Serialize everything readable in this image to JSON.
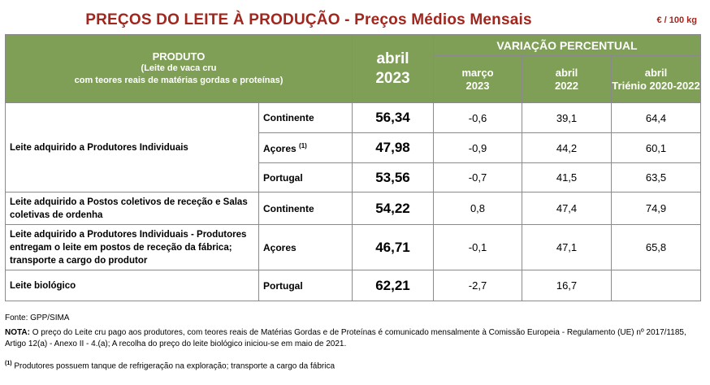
{
  "title": "PREÇOS DO LEITE À PRODUÇÃO - Preços Médios Mensais",
  "unit": "€ / 100 kg",
  "header": {
    "produto": "PRODUTO",
    "produto_sub1": "(Leite de vaca cru",
    "produto_sub2": "com teores reais de matérias gordas e proteínas)",
    "current_month": "abril",
    "current_year": "2023",
    "variation": "VARIAÇÃO PERCENTUAL",
    "col1_a": "março",
    "col1_b": "2023",
    "col2_a": "abril",
    "col2_b": "2022",
    "col3_a": "abril",
    "col3_b": "Triénio 2020-2022"
  },
  "rows": [
    {
      "product": "Leite adquirido a Produtores Individuais",
      "region": "Continente",
      "price": "56,34",
      "v1": "-0,6",
      "v2": "39,1",
      "v3": "64,4"
    },
    {
      "region": "Açores",
      "note_mark": "(1)",
      "price": "47,98",
      "v1": "-0,9",
      "v2": "44,2",
      "v3": "60,1"
    },
    {
      "region": "Portugal",
      "price": "53,56",
      "v1": "-0,7",
      "v2": "41,5",
      "v3": "63,5"
    },
    {
      "product": "Leite adquirido a Postos coletivos de receção e Salas coletivas de ordenha",
      "region": "Continente",
      "price": "54,22",
      "v1": "0,8",
      "v2": "47,4",
      "v3": "74,9"
    },
    {
      "product": "Leite adquirido a Produtores Individuais - Produtores entregam o leite em postos de receção da fábrica; transporte a cargo do produtor",
      "region": "Açores",
      "price": "46,71",
      "v1": "-0,1",
      "v2": "47,1",
      "v3": "65,8"
    },
    {
      "product": "Leite biológico",
      "region": "Portugal",
      "price": "62,21",
      "v1": "-2,7",
      "v2": "16,7",
      "v3": ""
    }
  ],
  "source": "Fonte: GPP/SIMA",
  "note_label": "NOTA:",
  "note_text": "O preço do Leite cru pago aos produtores, com teores reais de Matérias Gordas e de Proteínas é comunicado mensalmente à Comissão Europeia - Regulamento (UE) nº 2017/1185, Artigo 12(a) - Anexo II - 4.(a); A recolha do preço do leite biológico iniciou-se em maio de 2021.",
  "footnote_mark": "(1)",
  "footnote_text": "Produtores possuem tanque de refrigeração na exploração; transporte a cargo da fábrica"
}
